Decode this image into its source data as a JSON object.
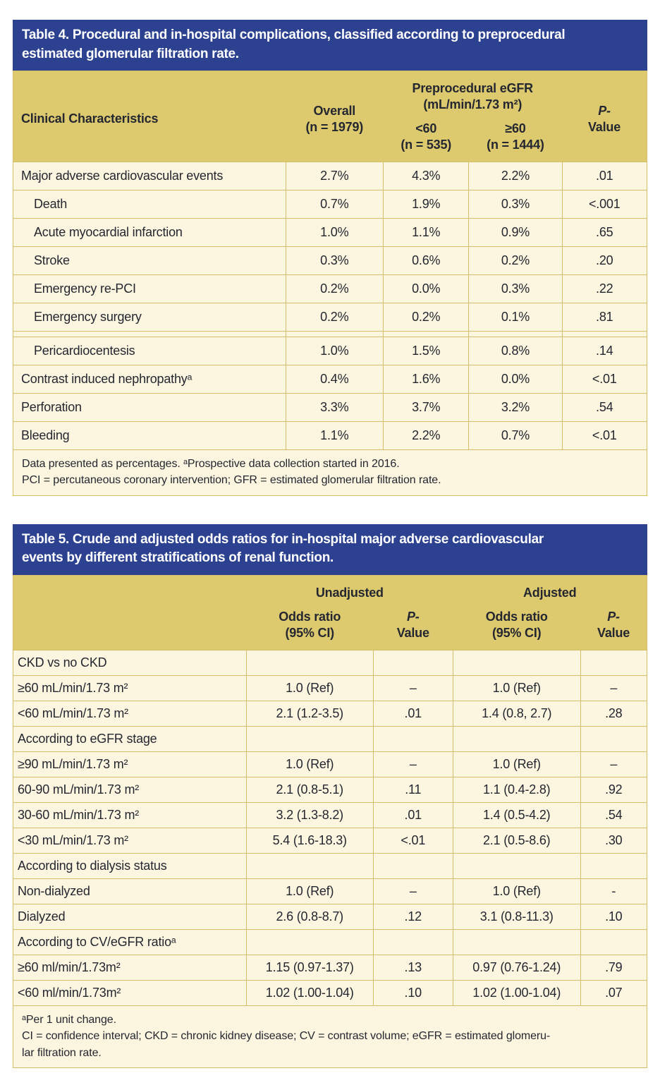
{
  "colors": {
    "title_bar_bg": "#2c4190",
    "header_bg": "#ddc96e",
    "body_bg": "#fcf5e0",
    "grid_line": "#d5be69",
    "title_text": "#ffffff",
    "body_text": "#242730"
  },
  "table4": {
    "title_lines": [
      "Table 4. Procedural and in-hospital complications, classified according to preprocedural",
      "estimated glomerular filtration rate."
    ],
    "header": {
      "col_label": "Clinical  Characteristics",
      "overall_line1": "Overall",
      "overall_line2": "(n = 1979)",
      "egfr_group_line1": "Preprocedural eGFR",
      "egfr_group_line2": "(mL/min/1.73 m²)",
      "lt60_line1": "<60",
      "lt60_line2": "(n = 535)",
      "ge60_line1": "≥60",
      "ge60_line2": "(n = 1444)",
      "p_line1": "P-",
      "p_line2": "Value"
    },
    "rows": [
      {
        "label": "Major adverse cardiovascular events",
        "indent": false,
        "values": [
          "2.7%",
          "4.3%",
          "2.2%",
          ".01"
        ]
      },
      {
        "label": "Death",
        "indent": true,
        "values": [
          "0.7%",
          "1.9%",
          "0.3%",
          "<.001"
        ]
      },
      {
        "label": "Acute myocardial infarction",
        "indent": true,
        "values": [
          "1.0%",
          "1.1%",
          "0.9%",
          ".65"
        ]
      },
      {
        "label": "Stroke",
        "indent": true,
        "values": [
          "0.3%",
          "0.6%",
          "0.2%",
          ".20"
        ]
      },
      {
        "label": "Emergency re-PCI",
        "indent": true,
        "values": [
          "0.2%",
          "0.0%",
          "0.3%",
          ".22"
        ]
      },
      {
        "label": "Emergency surgery",
        "indent": true,
        "values": [
          "0.2%",
          "0.2%",
          "0.1%",
          ".81"
        ]
      },
      {
        "label": "Pericardiocentesis",
        "indent": true,
        "spacer_above": true,
        "values": [
          "1.0%",
          "1.5%",
          "0.8%",
          ".14"
        ]
      },
      {
        "label": "Contrast induced nephropathyᵃ",
        "indent": false,
        "values": [
          "0.4%",
          "1.6%",
          "0.0%",
          "<.01"
        ]
      },
      {
        "label": "Perforation",
        "indent": false,
        "values": [
          "3.3%",
          "3.7%",
          "3.2%",
          ".54"
        ]
      },
      {
        "label": "Bleeding",
        "indent": false,
        "values": [
          "1.1%",
          "2.2%",
          "0.7%",
          "<.01"
        ]
      }
    ],
    "footnotes": [
      "Data presented as percentages. ᵃProspective data collection started in 2016.",
      "PCI = percutaneous coronary intervention; GFR = estimated glomerular filtration rate."
    ]
  },
  "table5": {
    "title_lines": [
      "Table 5. Crude and adjusted odds ratios for in-hospital major adverse cardiovascular",
      "events by different stratifications of renal function."
    ],
    "header": {
      "unadjusted": "Unadjusted",
      "adjusted": "Adjusted",
      "or_line1": "Odds ratio",
      "or_line2": "(95% CI)",
      "p_line1": "P-",
      "p_line2": "Value"
    },
    "rows": [
      {
        "label": "CKD vs no CKD",
        "group": true,
        "values": [
          "",
          "",
          "",
          ""
        ]
      },
      {
        "label": "≥60 mL/min/1.73 m²",
        "indent": true,
        "values": [
          "1.0 (Ref)",
          "–",
          "1.0 (Ref)",
          "–"
        ]
      },
      {
        "label": "<60 mL/min/1.73 m²",
        "indent": true,
        "values": [
          "2.1 (1.2-3.5)",
          ".01",
          "1.4 (0.8, 2.7)",
          ".28"
        ]
      },
      {
        "label": "According to eGFR stage",
        "group": true,
        "values": [
          "",
          "",
          "",
          ""
        ]
      },
      {
        "label": "≥90 mL/min/1.73 m²",
        "indent": true,
        "values": [
          "1.0 (Ref)",
          "–",
          "1.0 (Ref)",
          "–"
        ]
      },
      {
        "label": "60-90 mL/min/1.73 m²",
        "indent": true,
        "values": [
          "2.1 (0.8-5.1)",
          ".11",
          "1.1 (0.4-2.8)",
          ".92"
        ]
      },
      {
        "label": "30-60 mL/min/1.73 m²",
        "indent": true,
        "values": [
          "3.2 (1.3-8.2)",
          ".01",
          "1.4 (0.5-4.2)",
          ".54"
        ]
      },
      {
        "label": "<30 mL/min/1.73 m²",
        "indent": true,
        "values": [
          "5.4 (1.6-18.3)",
          "<.01",
          "2.1 (0.5-8.6)",
          ".30"
        ]
      },
      {
        "label": "According to dialysis status",
        "group": true,
        "values": [
          "",
          "",
          "",
          ""
        ]
      },
      {
        "label": "Non-dialyzed",
        "indent": true,
        "values": [
          "1.0 (Ref)",
          "–",
          "1.0 (Ref)",
          "-"
        ]
      },
      {
        "label": "Dialyzed",
        "indent": true,
        "values": [
          "2.6 (0.8-8.7)",
          ".12",
          "3.1 (0.8-11.3)",
          ".10"
        ]
      },
      {
        "label": "According to CV/eGFR ratioᵃ",
        "group": true,
        "values": [
          "",
          "",
          "",
          ""
        ]
      },
      {
        "label": "≥60 ml/min/1.73m²",
        "indent": true,
        "values": [
          "1.15 (0.97-1.37)",
          ".13",
          "0.97 (0.76-1.24)",
          ".79"
        ]
      },
      {
        "label": "<60 ml/min/1.73m²",
        "indent": true,
        "values": [
          "1.02 (1.00-1.04)",
          ".10",
          "1.02 (1.00-1.04)",
          ".07"
        ]
      }
    ],
    "footnotes": [
      "ᵃPer 1 unit change.",
      "CI = confidence interval; CKD = chronic kidney disease; CV = contrast volume; eGFR = estimated glomeru-",
      "lar filtration rate."
    ]
  }
}
